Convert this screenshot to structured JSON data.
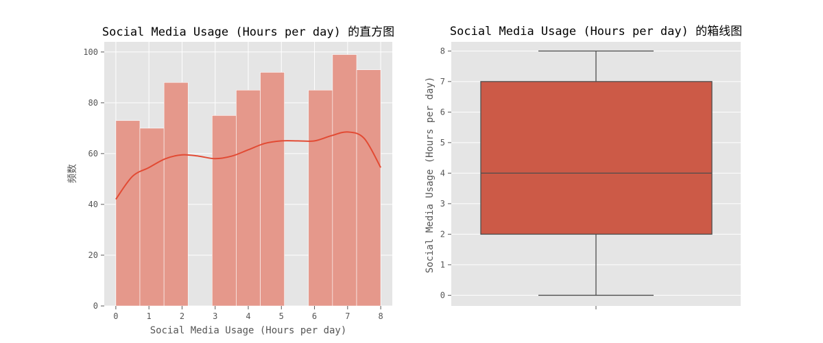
{
  "chart_data": [
    {
      "type": "bar",
      "subtype": "histogram_with_kde",
      "title": "Social Media Usage (Hours per day) 的直方图",
      "xlabel": "Social Media Usage (Hours per day)",
      "ylabel": "频数",
      "xlim": [
        -0.35,
        8.35
      ],
      "ylim": [
        0,
        104
      ],
      "xticks": [
        "0",
        "1",
        "2",
        "3",
        "4",
        "5",
        "6",
        "7",
        "8"
      ],
      "yticks": [
        "0",
        "20",
        "40",
        "60",
        "80",
        "100"
      ],
      "bins": [
        {
          "x0": 0.0,
          "x1": 0.727,
          "count": 73
        },
        {
          "x0": 0.727,
          "x1": 1.455,
          "count": 70
        },
        {
          "x0": 1.455,
          "x1": 2.182,
          "count": 88
        },
        {
          "x0": 2.182,
          "x1": 2.909,
          "count": 0
        },
        {
          "x0": 2.909,
          "x1": 3.636,
          "count": 75
        },
        {
          "x0": 3.636,
          "x1": 4.364,
          "count": 85
        },
        {
          "x0": 4.364,
          "x1": 5.091,
          "count": 92
        },
        {
          "x0": 5.091,
          "x1": 5.818,
          "count": 0
        },
        {
          "x0": 5.818,
          "x1": 6.545,
          "count": 85
        },
        {
          "x0": 6.545,
          "x1": 7.273,
          "count": 99
        },
        {
          "x0": 7.273,
          "x1": 8.0,
          "count": 93
        }
      ],
      "kde": {
        "x": [
          0,
          0.5,
          1.0,
          1.5,
          2.0,
          2.5,
          3.0,
          3.5,
          4.0,
          4.5,
          5.0,
          5.5,
          6.0,
          6.5,
          7.0,
          7.5,
          8.0
        ],
        "y": [
          42,
          51,
          54.5,
          58,
          59.5,
          59,
          58,
          59,
          61.5,
          64,
          65,
          65,
          65,
          67,
          68.5,
          66,
          54.5
        ]
      },
      "grid": true,
      "colors": {
        "bar": "#e5988b",
        "kde": "#e24a33",
        "background": "#e5e5e5",
        "grid": "#ffffff"
      }
    },
    {
      "type": "box",
      "title": "Social Media Usage (Hours per day) 的箱线图",
      "xlabel": "",
      "ylabel": "Social Media Usage (Hours per day)",
      "ylim": [
        -0.35,
        8.3
      ],
      "yticks": [
        "0",
        "1",
        "2",
        "3",
        "4",
        "5",
        "6",
        "7",
        "8"
      ],
      "min": 0,
      "q1": 2,
      "median": 4,
      "q3": 7,
      "max": 8,
      "grid": true,
      "colors": {
        "box": "#cc5a47",
        "line": "#4d4d4d",
        "background": "#e5e5e5",
        "grid": "#ffffff"
      }
    }
  ]
}
